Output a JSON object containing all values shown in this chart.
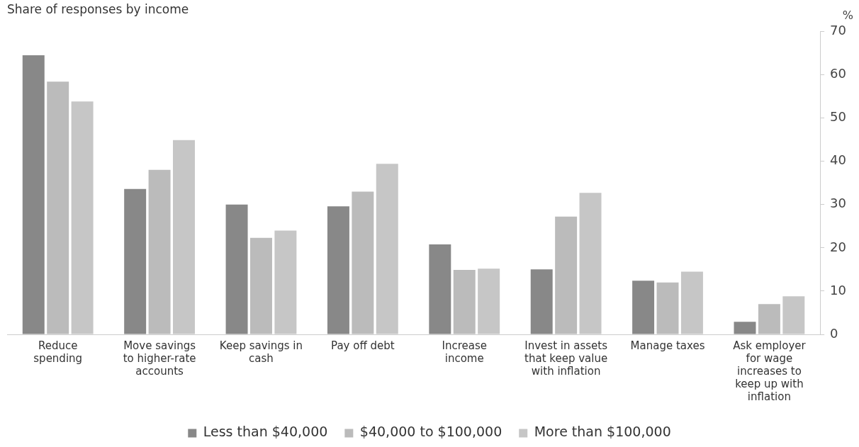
{
  "chart_data": {
    "type": "bar",
    "title": "Share of responses by income",
    "ylabel": "%",
    "categories": [
      "Reduce spending",
      "Move savings to higher-rate accounts",
      "Keep savings in cash",
      "Pay off debt",
      "Increase income",
      "Invest in assets that keep value with inflation",
      "Manage taxes",
      "Ask employer for wage increases to keep up with inflation"
    ],
    "series": [
      {
        "name": "Less than $40,000",
        "color": "#888888",
        "values": [
          64.5,
          33.6,
          30.0,
          29.6,
          20.8,
          15.0,
          12.4,
          2.9
        ]
      },
      {
        "name": "$40,000 to $100,000",
        "color": "#bbbbbb",
        "values": [
          58.4,
          38.0,
          22.3,
          33.0,
          14.9,
          27.2,
          12.0,
          7.0
        ]
      },
      {
        "name": "More than $100,000",
        "color": "#c6c6c6",
        "values": [
          53.8,
          44.9,
          24.0,
          39.4,
          15.2,
          32.7,
          14.5,
          8.8
        ]
      }
    ],
    "ylim": [
      0,
      70
    ],
    "yticks": [
      0,
      10,
      20,
      30,
      40,
      50,
      60,
      70
    ],
    "grid": false,
    "legend": "bottom"
  }
}
